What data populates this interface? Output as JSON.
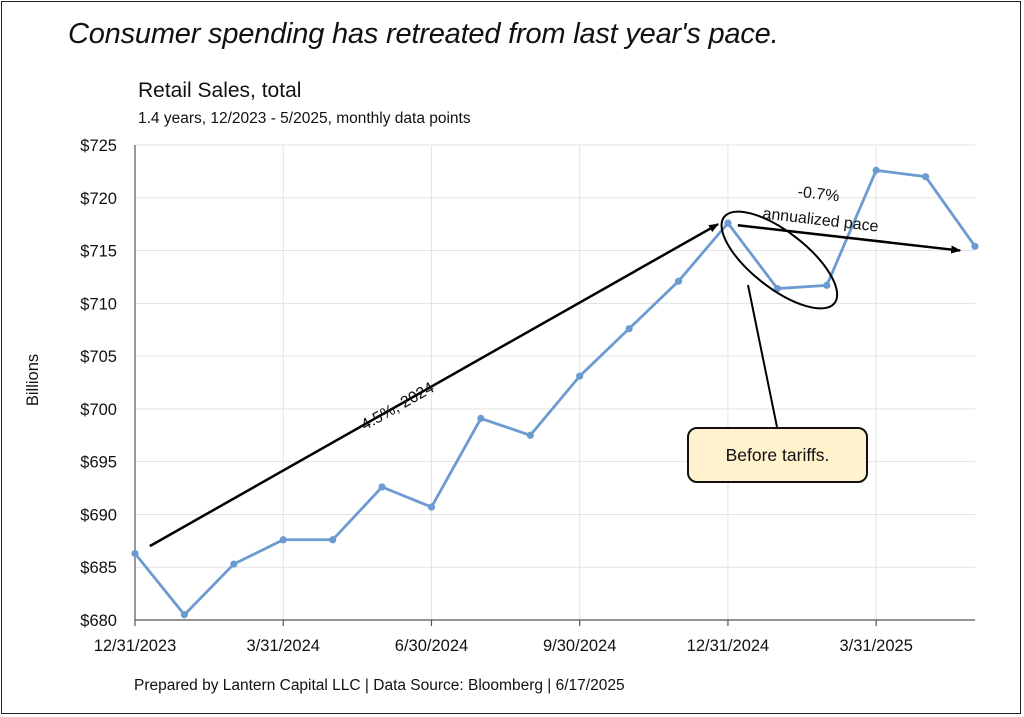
{
  "page": {
    "headline": "Consumer spending has retreated from last year's pace.",
    "footer": "Prepared by Lantern Capital LLC | Data Source: Bloomberg | 6/17/2025"
  },
  "chart_data": {
    "type": "line",
    "title": "Retail Sales, total",
    "subtitle": "1.4 years, 12/2023 - 5/2025, monthly data points",
    "xlabel": "",
    "ylabel": "Billions",
    "ylim": [
      680,
      725
    ],
    "yticks": [
      680,
      685,
      690,
      695,
      700,
      705,
      710,
      715,
      720,
      725
    ],
    "ytick_prefix": "$",
    "xticks": [
      "12/31/2023",
      "3/31/2024",
      "6/30/2024",
      "9/30/2024",
      "12/31/2024",
      "3/31/2025"
    ],
    "xtick_month_index": [
      0,
      3,
      6,
      9,
      12,
      15
    ],
    "grid": true,
    "legend": "none",
    "series": [
      {
        "name": "Retail Sales, total",
        "color": "#6b9bd1",
        "x": [
          "12/2023",
          "1/2024",
          "2/2024",
          "3/2024",
          "4/2024",
          "5/2024",
          "6/2024",
          "7/2024",
          "8/2024",
          "9/2024",
          "10/2024",
          "11/2024",
          "12/2024",
          "1/2025",
          "2/2025",
          "3/2025",
          "4/2025",
          "5/2025"
        ],
        "values": [
          686.3,
          680.5,
          685.3,
          687.6,
          687.6,
          692.6,
          690.7,
          699.1,
          697.5,
          703.1,
          707.6,
          712.1,
          717.6,
          711.4,
          711.7,
          722.6,
          722.0,
          715.4
        ]
      }
    ],
    "annotations": [
      {
        "text": "4.5%, 2024",
        "type": "arrow",
        "from_month": 0.3,
        "from_value": 687.0,
        "to_month": 11.8,
        "to_value": 717.5
      },
      {
        "text_line1": "-0.7%",
        "text_line2": "annualized pace",
        "type": "arrow",
        "from_month": 12.2,
        "from_value": 717.4,
        "to_month": 16.7,
        "to_value": 715.0
      },
      {
        "text": "Before tariffs.",
        "type": "callout",
        "box_color": "#fff2cc",
        "highlight_months": [
          12,
          14
        ]
      }
    ]
  }
}
